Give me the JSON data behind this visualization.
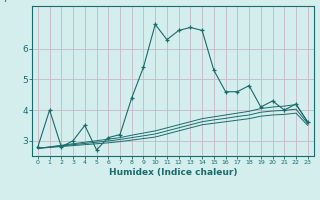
{
  "title": "",
  "xlabel": "Humidex (Indice chaleur)",
  "bg_color": "#d4eeee",
  "grid_color": "#c8b8c8",
  "line_color": "#1a6b6b",
  "xlim": [
    -0.5,
    23.5
  ],
  "ylim": [
    2.5,
    7.4
  ],
  "yticks": [
    3,
    4,
    5,
    6
  ],
  "xticks": [
    0,
    1,
    2,
    3,
    4,
    5,
    6,
    7,
    8,
    9,
    10,
    11,
    12,
    13,
    14,
    15,
    16,
    17,
    18,
    19,
    20,
    21,
    22,
    23
  ],
  "line1_x": [
    0,
    1,
    2,
    3,
    4,
    5,
    6,
    7,
    8,
    9,
    10,
    11,
    12,
    13,
    14,
    15,
    16,
    17,
    18,
    19,
    20,
    21,
    22,
    23
  ],
  "line1_y": [
    2.8,
    4.0,
    2.8,
    3.0,
    3.5,
    2.7,
    3.1,
    3.2,
    4.4,
    5.4,
    6.8,
    6.3,
    6.6,
    6.7,
    6.6,
    5.3,
    4.6,
    4.6,
    4.8,
    4.1,
    4.3,
    4.0,
    4.2,
    3.6
  ],
  "line2_x": [
    0,
    1,
    2,
    3,
    4,
    5,
    6,
    7,
    8,
    9,
    10,
    11,
    12,
    13,
    14,
    15,
    16,
    17,
    18,
    19,
    20,
    21,
    22,
    23
  ],
  "line2_y": [
    2.75,
    2.8,
    2.85,
    2.9,
    2.95,
    3.0,
    3.05,
    3.1,
    3.18,
    3.25,
    3.32,
    3.42,
    3.52,
    3.62,
    3.72,
    3.78,
    3.84,
    3.9,
    3.96,
    4.05,
    4.1,
    4.13,
    4.18,
    3.62
  ],
  "line3_x": [
    0,
    1,
    2,
    3,
    4,
    5,
    6,
    7,
    8,
    9,
    10,
    11,
    12,
    13,
    14,
    15,
    16,
    17,
    18,
    19,
    20,
    21,
    22,
    23
  ],
  "line3_y": [
    2.75,
    2.79,
    2.83,
    2.87,
    2.91,
    2.95,
    2.99,
    3.04,
    3.1,
    3.16,
    3.22,
    3.32,
    3.42,
    3.52,
    3.62,
    3.68,
    3.73,
    3.79,
    3.84,
    3.93,
    3.97,
    3.99,
    4.03,
    3.56
  ],
  "line4_x": [
    0,
    1,
    2,
    3,
    4,
    5,
    6,
    7,
    8,
    9,
    10,
    11,
    12,
    13,
    14,
    15,
    16,
    17,
    18,
    19,
    20,
    21,
    22,
    23
  ],
  "line4_y": [
    2.75,
    2.78,
    2.81,
    2.84,
    2.87,
    2.9,
    2.93,
    2.97,
    3.02,
    3.07,
    3.12,
    3.22,
    3.32,
    3.42,
    3.52,
    3.57,
    3.62,
    3.67,
    3.72,
    3.8,
    3.84,
    3.86,
    3.9,
    3.5
  ]
}
